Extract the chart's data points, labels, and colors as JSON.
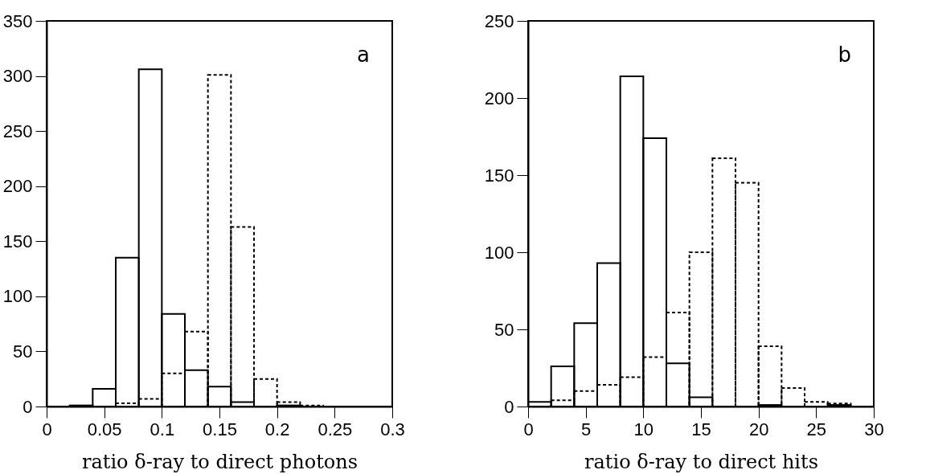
{
  "chart_data": [
    {
      "type": "histogram",
      "xlabel": "ratio δ-ray to direct photons",
      "annotations": [
        "a"
      ],
      "bins": [
        0,
        0.02,
        0.04,
        0.06,
        0.08,
        0.1,
        0.12,
        0.14,
        0.16,
        0.18,
        0.2,
        0.22,
        0.24,
        0.26,
        0.28,
        0.3
      ],
      "xlim": [
        0,
        0.3
      ],
      "xticks": [
        0,
        0.05,
        0.1,
        0.15,
        0.2,
        0.25,
        0.3
      ],
      "ylim": [
        0,
        350
      ],
      "yticks": [
        0,
        50,
        100,
        150,
        200,
        250,
        300,
        350
      ],
      "grid": false,
      "series": [
        {
          "color": "#000000",
          "line_style": "solid",
          "values": [
            0,
            1,
            16,
            135,
            306,
            84,
            33,
            18,
            4,
            0,
            1,
            0,
            0,
            0,
            0
          ]
        },
        {
          "color": "#000000",
          "line_style": "dashed",
          "values": [
            0,
            0,
            0,
            3,
            7,
            30,
            68,
            301,
            163,
            25,
            4,
            1,
            0,
            0,
            0
          ]
        }
      ]
    },
    {
      "type": "histogram",
      "xlabel": "ratio δ-ray to direct hits",
      "annotations": [
        "b"
      ],
      "bins": [
        0,
        2,
        4,
        6,
        8,
        10,
        12,
        14,
        16,
        18,
        20,
        22,
        24,
        26,
        28,
        30
      ],
      "xlim": [
        0,
        30
      ],
      "xticks": [
        0,
        5,
        10,
        15,
        20,
        25,
        30
      ],
      "ylim": [
        0,
        250
      ],
      "yticks": [
        0,
        50,
        100,
        150,
        200,
        250
      ],
      "grid": false,
      "series": [
        {
          "color": "#000000",
          "line_style": "solid",
          "values": [
            3,
            26,
            54,
            93,
            214,
            174,
            28,
            6,
            0,
            0,
            1,
            0,
            0,
            1,
            0
          ]
        },
        {
          "color": "#000000",
          "line_style": "dashed",
          "values": [
            0,
            4,
            10,
            14,
            19,
            32,
            61,
            100,
            161,
            145,
            39,
            12,
            3,
            2,
            0
          ]
        }
      ]
    }
  ]
}
